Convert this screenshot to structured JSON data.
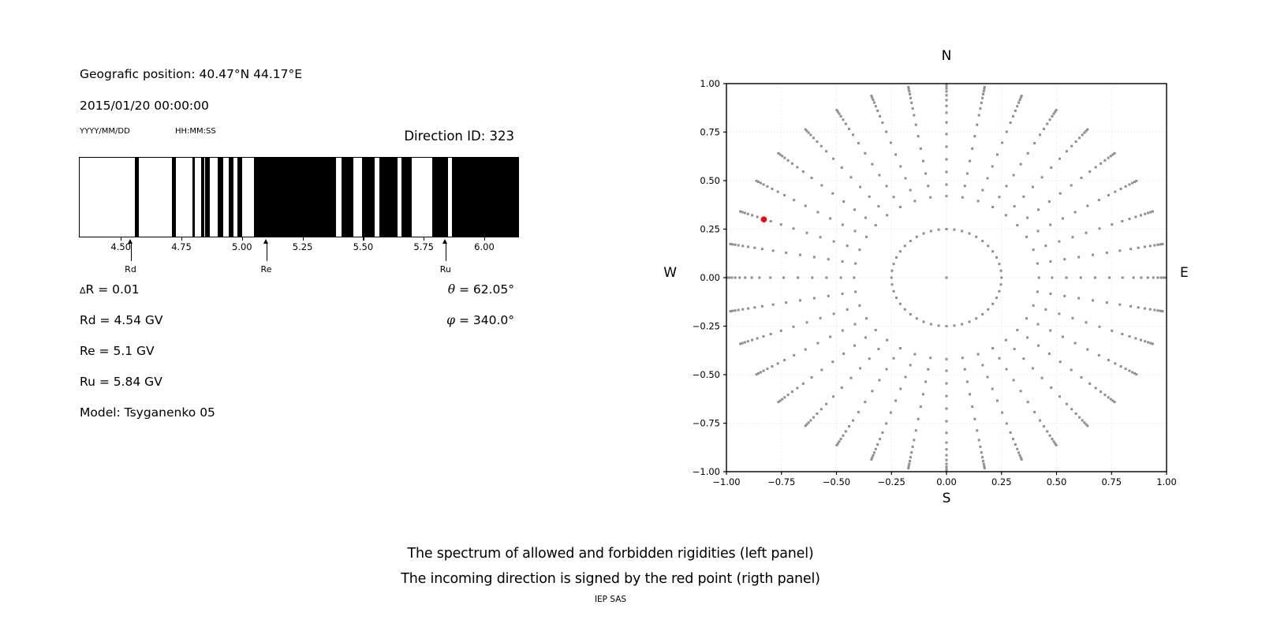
{
  "header": {
    "position_label": "Geografic position: 40.47°N 44.17°E",
    "datetime": "2015/01/20 00:00:00",
    "date_format_hint": "YYYY/MM/DD",
    "time_format_hint": "HH:MM:SS",
    "direction_id_label": "Direction ID: 323"
  },
  "parameters": {
    "delta_sym": "Δ",
    "delta_rest": "R = 0.01",
    "rd": "Rd = 4.54 GV",
    "re": "Re = 5.1 GV",
    "ru": "Ru = 5.84 GV",
    "model": "Model: Tsyganenko 05",
    "theta_sym": "θ",
    "theta_rest": " = 62.05°",
    "phi_sym": "φ",
    "phi_rest": " = 340.0°"
  },
  "caption": {
    "line1": "The spectrum of allowed and forbidden rigidities (left panel)",
    "line2": "The incoming direction is signed by the red point (rigth panel)",
    "credit": "IEP SAS"
  },
  "chart_data": [
    {
      "type": "bar",
      "panel": "left-spectrum",
      "xlim": [
        4.33,
        6.14
      ],
      "x_tick_values": [
        4.5,
        4.75,
        5.0,
        5.25,
        5.5,
        5.75,
        6.0
      ],
      "x_tick_labels": [
        "4.50",
        "4.75",
        "5.00",
        "5.25",
        "5.50",
        "5.75",
        "6.00"
      ],
      "bar_color": "#000000",
      "forbidden_bands_gv": [
        [
          4.557,
          4.573
        ],
        [
          4.711,
          4.727
        ],
        [
          4.797,
          4.806
        ],
        [
          4.83,
          4.843
        ],
        [
          4.849,
          4.868
        ],
        [
          4.9,
          4.923
        ],
        [
          4.946,
          4.965
        ],
        [
          4.982,
          5.001
        ],
        [
          5.05,
          5.387
        ],
        [
          5.412,
          5.46
        ],
        [
          5.495,
          5.547
        ],
        [
          5.566,
          5.641
        ],
        [
          5.658,
          5.701
        ],
        [
          5.784,
          5.851
        ],
        [
          5.866,
          6.14
        ]
      ],
      "markers": [
        {
          "label": "Rd",
          "value_gv": 4.54
        },
        {
          "label": "Re",
          "value_gv": 5.1
        },
        {
          "label": "Ru",
          "value_gv": 5.84
        }
      ]
    },
    {
      "type": "scatter",
      "panel": "right-direction",
      "xlim": [
        -1,
        1
      ],
      "ylim": [
        -1,
        1
      ],
      "x_tick_labels": [
        "−1.00",
        "−0.75",
        "−0.50",
        "−0.25",
        "0.00",
        "0.25",
        "0.50",
        "0.75",
        "1.00"
      ],
      "y_tick_labels": [
        "1.00",
        "0.75",
        "0.50",
        "0.25",
        "0.00",
        "−0.25",
        "−0.50",
        "−0.75",
        "−1.00"
      ],
      "x_tick_values": [
        -1,
        -0.75,
        -0.5,
        -0.25,
        0,
        0.25,
        0.5,
        0.75,
        1
      ],
      "y_tick_values": [
        1,
        0.75,
        0.5,
        0.25,
        0,
        -0.25,
        -0.5,
        -0.75,
        -1
      ],
      "grid": true,
      "grid_step": 0.25,
      "grid_color": "#e8e8e8",
      "dot_color": "#8f8f8f",
      "compass_labels": {
        "top": "N",
        "bottom": "S",
        "left": "W",
        "right": "E"
      },
      "inner_ring": {
        "radius": 0.25,
        "n_dots": 44
      },
      "center_dot": {
        "x": 0,
        "y": 0
      },
      "spokes": {
        "count": 36,
        "angle_step_deg": 10,
        "dot_radii": [
          0.42,
          0.48,
          0.545,
          0.61,
          0.675,
          0.74,
          0.8,
          0.85,
          0.885,
          0.915,
          0.94,
          0.96,
          0.975,
          0.987,
          0.997
        ]
      },
      "red_point": {
        "x": -0.83,
        "y": 0.3,
        "color": "#ff0000"
      }
    }
  ]
}
